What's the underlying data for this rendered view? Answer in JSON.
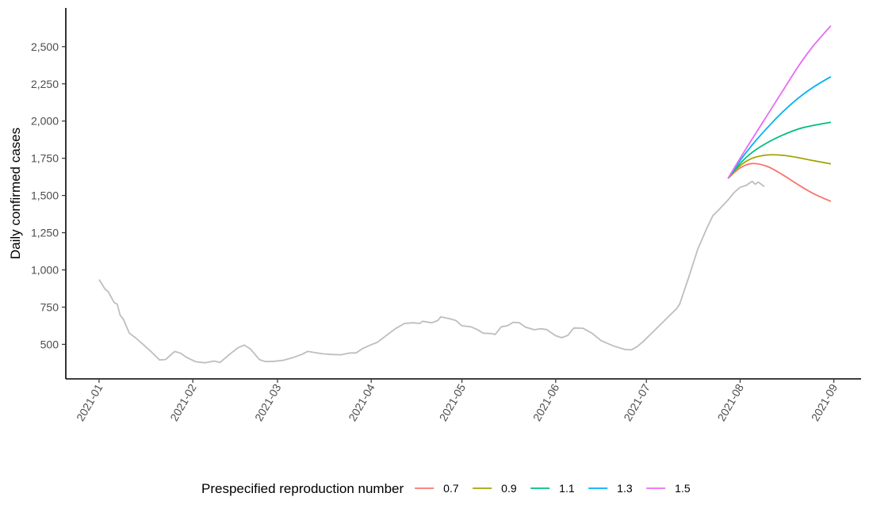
{
  "chart_data": {
    "type": "line",
    "ylabel": "Daily confirmed cases",
    "xlabel": "",
    "ylim": [
      268,
      2760
    ],
    "xlim": [
      "2020-12-21",
      "2021-09-10"
    ],
    "y_ticks": [
      500,
      750,
      1000,
      1250,
      1500,
      1750,
      2000,
      2250,
      2500
    ],
    "y_tick_labels": [
      "500",
      "750",
      "1,000",
      "1,250",
      "1,500",
      "1,750",
      "2,000",
      "2,250",
      "2,500"
    ],
    "x_ticks": [
      "2021-01-01",
      "2021-02-01",
      "2021-03-01",
      "2021-04-01",
      "2021-05-01",
      "2021-06-01",
      "2021-07-01",
      "2021-08-01",
      "2021-09-01"
    ],
    "x_tick_labels": [
      "2021-01",
      "2021-02",
      "2021-03",
      "2021-04",
      "2021-05",
      "2021-06",
      "2021-07",
      "2021-08",
      "2021-09"
    ],
    "grid": false,
    "legend_position": "bottom",
    "legend_title": "Prespecified reproduction number",
    "observed": {
      "color": "#bebebe",
      "points": [
        [
          "2021-01-01",
          935
        ],
        [
          "2021-01-03",
          870
        ],
        [
          "2021-01-04",
          855
        ],
        [
          "2021-01-06",
          780
        ],
        [
          "2021-01-07",
          770
        ],
        [
          "2021-01-08",
          695
        ],
        [
          "2021-01-09",
          670
        ],
        [
          "2021-01-11",
          575
        ],
        [
          "2021-01-13",
          545
        ],
        [
          "2021-01-15",
          510
        ],
        [
          "2021-01-18",
          455
        ],
        [
          "2021-01-21",
          395
        ],
        [
          "2021-01-23",
          398
        ],
        [
          "2021-01-26",
          452
        ],
        [
          "2021-01-28",
          440
        ],
        [
          "2021-01-30",
          412
        ],
        [
          "2021-02-02",
          383
        ],
        [
          "2021-02-05",
          376
        ],
        [
          "2021-02-08",
          388
        ],
        [
          "2021-02-10",
          378
        ],
        [
          "2021-02-13",
          430
        ],
        [
          "2021-02-16",
          478
        ],
        [
          "2021-02-18",
          495
        ],
        [
          "2021-02-20",
          470
        ],
        [
          "2021-02-23",
          398
        ],
        [
          "2021-02-25",
          384
        ],
        [
          "2021-02-28",
          386
        ],
        [
          "2021-03-03",
          393
        ],
        [
          "2021-03-06",
          410
        ],
        [
          "2021-03-09",
          432
        ],
        [
          "2021-03-11",
          453
        ],
        [
          "2021-03-13",
          446
        ],
        [
          "2021-03-16",
          436
        ],
        [
          "2021-03-19",
          432
        ],
        [
          "2021-03-22",
          430
        ],
        [
          "2021-03-25",
          442
        ],
        [
          "2021-03-27",
          442
        ],
        [
          "2021-03-29",
          470
        ],
        [
          "2021-04-01",
          498
        ],
        [
          "2021-04-03",
          513
        ],
        [
          "2021-04-06",
          560
        ],
        [
          "2021-04-09",
          605
        ],
        [
          "2021-04-12",
          640
        ],
        [
          "2021-04-15",
          645
        ],
        [
          "2021-04-17",
          640
        ],
        [
          "2021-04-18",
          655
        ],
        [
          "2021-04-21",
          645
        ],
        [
          "2021-04-23",
          660
        ],
        [
          "2021-04-24",
          685
        ],
        [
          "2021-04-27",
          672
        ],
        [
          "2021-04-29",
          660
        ],
        [
          "2021-05-01",
          625
        ],
        [
          "2021-05-04",
          618
        ],
        [
          "2021-05-06",
          600
        ],
        [
          "2021-05-08",
          575
        ],
        [
          "2021-05-11",
          572
        ],
        [
          "2021-05-12",
          566
        ],
        [
          "2021-05-14",
          618
        ],
        [
          "2021-05-16",
          625
        ],
        [
          "2021-05-18",
          648
        ],
        [
          "2021-05-20",
          645
        ],
        [
          "2021-05-22",
          615
        ],
        [
          "2021-05-25",
          598
        ],
        [
          "2021-05-27",
          605
        ],
        [
          "2021-05-29",
          599
        ],
        [
          "2021-06-01",
          558
        ],
        [
          "2021-06-03",
          545
        ],
        [
          "2021-06-05",
          560
        ],
        [
          "2021-06-07",
          610
        ],
        [
          "2021-06-10",
          608
        ],
        [
          "2021-06-13",
          575
        ],
        [
          "2021-06-16",
          525
        ],
        [
          "2021-06-20",
          490
        ],
        [
          "2021-06-24",
          465
        ],
        [
          "2021-06-26",
          463
        ],
        [
          "2021-06-28",
          485
        ],
        [
          "2021-06-30",
          520
        ],
        [
          "2021-07-03",
          580
        ],
        [
          "2021-07-06",
          640
        ],
        [
          "2021-07-09",
          700
        ],
        [
          "2021-07-11",
          740
        ],
        [
          "2021-07-12",
          770
        ],
        [
          "2021-07-15",
          950
        ],
        [
          "2021-07-18",
          1140
        ],
        [
          "2021-07-21",
          1280
        ],
        [
          "2021-07-23",
          1365
        ],
        [
          "2021-07-25",
          1405
        ],
        [
          "2021-07-28",
          1470
        ],
        [
          "2021-07-30",
          1520
        ],
        [
          "2021-08-01",
          1555
        ],
        [
          "2021-08-03",
          1568
        ],
        [
          "2021-08-05",
          1595
        ],
        [
          "2021-08-06",
          1575
        ],
        [
          "2021-08-07",
          1590
        ],
        [
          "2021-08-09",
          1560
        ]
      ]
    },
    "series": [
      {
        "name": "0.7",
        "color": "#f8766d",
        "x": [
          "2021-07-28",
          "2021-08-01",
          "2021-08-05",
          "2021-08-10",
          "2021-08-15",
          "2021-08-20",
          "2021-08-25",
          "2021-08-31"
        ],
        "values": [
          1615,
          1685,
          1715,
          1695,
          1640,
          1575,
          1515,
          1460
        ]
      },
      {
        "name": "0.9",
        "color": "#a3a500",
        "x": [
          "2021-07-28",
          "2021-08-01",
          "2021-08-05",
          "2021-08-10",
          "2021-08-15",
          "2021-08-20",
          "2021-08-25",
          "2021-08-31"
        ],
        "values": [
          1615,
          1700,
          1750,
          1772,
          1770,
          1755,
          1735,
          1712
        ]
      },
      {
        "name": "1.1",
        "color": "#00bf7d",
        "x": [
          "2021-07-28",
          "2021-08-01",
          "2021-08-05",
          "2021-08-10",
          "2021-08-15",
          "2021-08-20",
          "2021-08-25",
          "2021-08-31"
        ],
        "values": [
          1615,
          1715,
          1790,
          1855,
          1905,
          1945,
          1970,
          1992
        ]
      },
      {
        "name": "1.3",
        "color": "#00b0f6",
        "x": [
          "2021-07-28",
          "2021-08-01",
          "2021-08-05",
          "2021-08-10",
          "2021-08-15",
          "2021-08-20",
          "2021-08-25",
          "2021-08-31"
        ],
        "values": [
          1615,
          1735,
          1840,
          1955,
          2060,
          2150,
          2225,
          2298
        ]
      },
      {
        "name": "1.5",
        "color": "#e76bf3",
        "x": [
          "2021-07-28",
          "2021-08-01",
          "2021-08-05",
          "2021-08-10",
          "2021-08-15",
          "2021-08-20",
          "2021-08-25",
          "2021-08-31"
        ],
        "values": [
          1615,
          1750,
          1880,
          2040,
          2200,
          2360,
          2500,
          2640
        ]
      }
    ]
  }
}
